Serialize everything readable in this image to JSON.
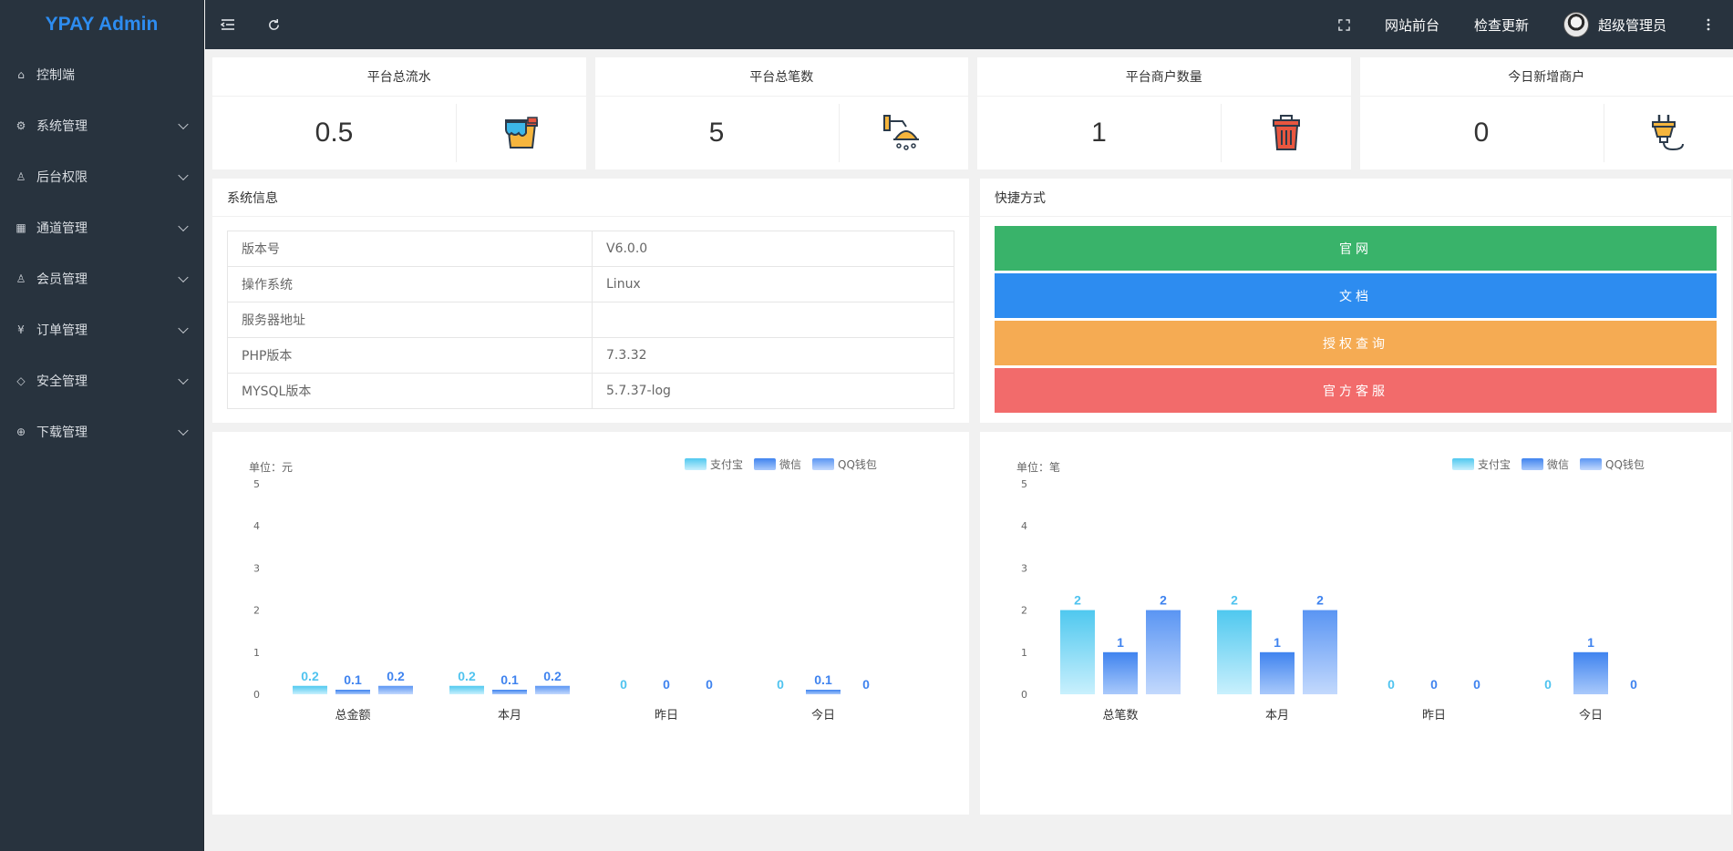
{
  "app": {
    "title": "YPAY Admin"
  },
  "sidebar": {
    "items": [
      {
        "label": "控制端",
        "icon": "home-icon",
        "glyph": "⌂",
        "has_arrow": false
      },
      {
        "label": "系统管理",
        "icon": "gear-icon",
        "glyph": "⚙",
        "has_arrow": true
      },
      {
        "label": "后台权限",
        "icon": "user-icon",
        "glyph": "♙",
        "has_arrow": true
      },
      {
        "label": "通道管理",
        "icon": "apps-icon",
        "glyph": "▦",
        "has_arrow": true
      },
      {
        "label": "会员管理",
        "icon": "member-icon",
        "glyph": "♙",
        "has_arrow": true
      },
      {
        "label": "订单管理",
        "icon": "yen-icon",
        "glyph": "¥",
        "has_arrow": true
      },
      {
        "label": "安全管理",
        "icon": "diamond-icon",
        "glyph": "◇",
        "has_arrow": true
      },
      {
        "label": "下载管理",
        "icon": "download-icon",
        "glyph": "⊕",
        "has_arrow": true
      }
    ]
  },
  "header": {
    "links": {
      "frontend": "网站前台",
      "update": "检查更新",
      "user": "超级管理员"
    }
  },
  "stats": [
    {
      "title": "平台总流水",
      "value": "0.5",
      "icon": "paint-bucket-icon"
    },
    {
      "title": "平台总笔数",
      "value": "5",
      "icon": "shower-icon"
    },
    {
      "title": "平台商户数量",
      "value": "1",
      "icon": "trash-can-icon"
    },
    {
      "title": "今日新增商户",
      "value": "0",
      "icon": "plug-icon"
    }
  ],
  "sysinfo": {
    "title": "系统信息",
    "rows": [
      {
        "key": "版本号",
        "value": "V6.0.0"
      },
      {
        "key": "操作系统",
        "value": "Linux"
      },
      {
        "key": "服务器地址",
        "value": ""
      },
      {
        "key": "PHP版本",
        "value": "7.3.32"
      },
      {
        "key": "MYSQL版本",
        "value": "5.7.37-log"
      }
    ]
  },
  "quick": {
    "title": "快捷方式",
    "buttons": [
      {
        "label": "官网",
        "color": "#39b36a"
      },
      {
        "label": "文档",
        "color": "#2d8cf0"
      },
      {
        "label": "授权查询",
        "color": "#f5ab53"
      },
      {
        "label": "官方客服",
        "color": "#f26b6b"
      }
    ]
  },
  "colors": {
    "alipay": "#4fc3ef",
    "wechat": "#4b8ff0",
    "qq": "#5b96f2"
  },
  "chart_data": [
    {
      "type": "bar",
      "unit_label": "单位：元",
      "categories": [
        "总金额",
        "本月",
        "昨日",
        "今日"
      ],
      "series": [
        {
          "name": "支付宝",
          "values": [
            0.2,
            0.2,
            0,
            0
          ]
        },
        {
          "name": "微信",
          "values": [
            0.1,
            0.1,
            0,
            0.1
          ]
        },
        {
          "name": "QQ钱包",
          "values": [
            0.2,
            0.2,
            0,
            0
          ]
        }
      ],
      "ylim": [
        0,
        5
      ],
      "yticks": [
        0,
        1,
        2,
        3,
        4,
        5
      ],
      "legend": "top-right"
    },
    {
      "type": "bar",
      "unit_label": "单位：笔",
      "categories": [
        "总笔数",
        "本月",
        "昨日",
        "今日"
      ],
      "series": [
        {
          "name": "支付宝",
          "values": [
            2,
            2,
            0,
            0
          ]
        },
        {
          "name": "微信",
          "values": [
            1,
            1,
            0,
            1
          ]
        },
        {
          "name": "QQ钱包",
          "values": [
            2,
            2,
            0,
            0
          ]
        }
      ],
      "ylim": [
        0,
        5
      ],
      "yticks": [
        0,
        1,
        2,
        3,
        4,
        5
      ],
      "legend": "top-right"
    }
  ]
}
